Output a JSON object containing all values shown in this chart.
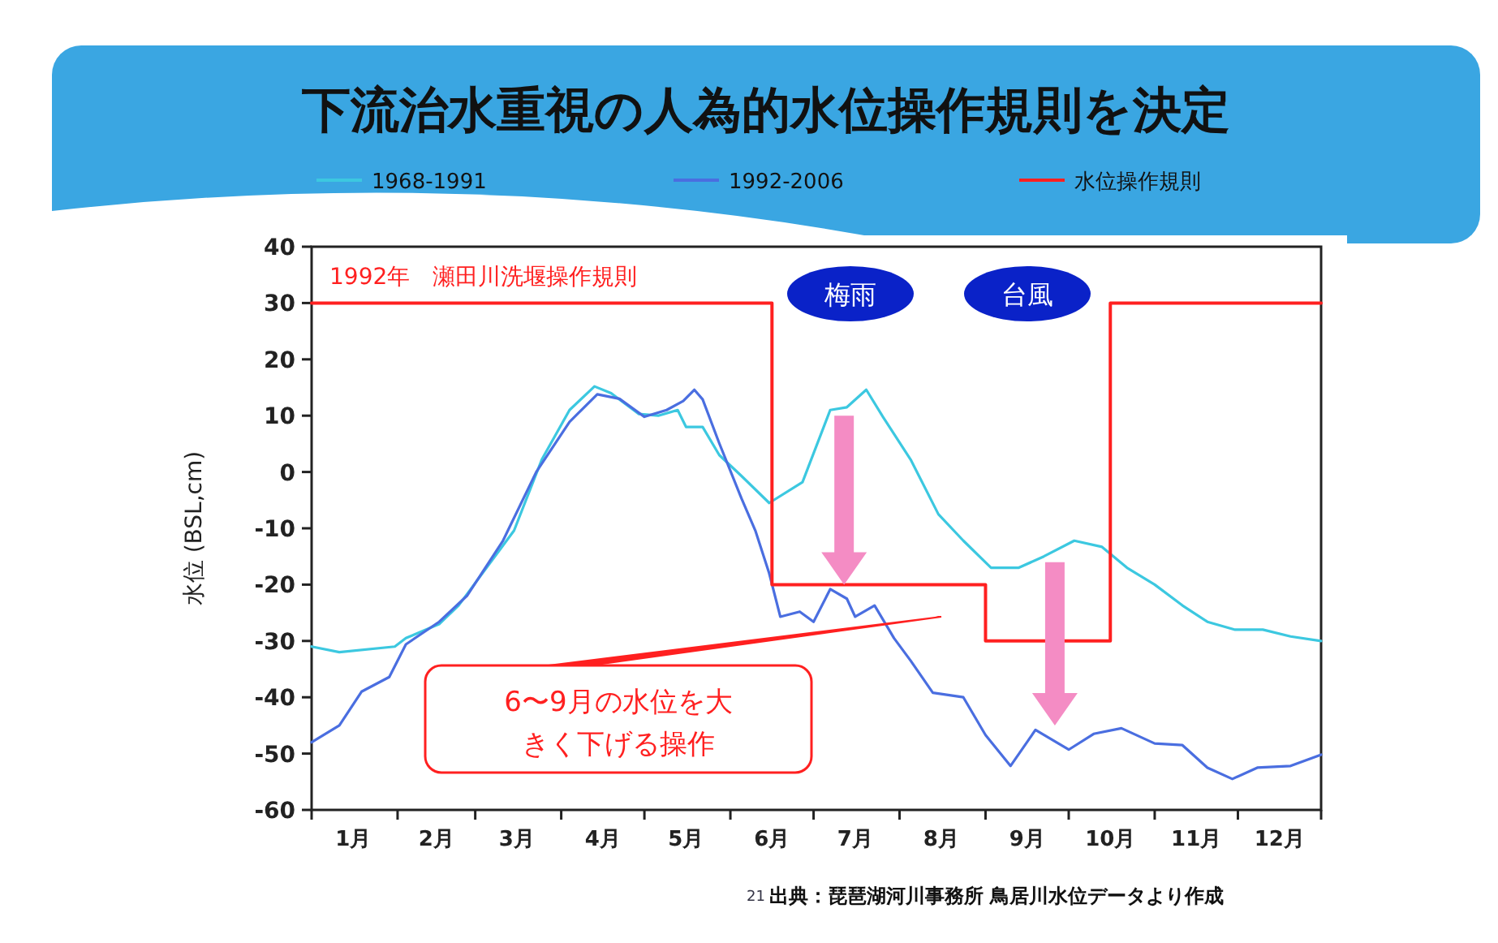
{
  "chart_data": {
    "type": "line",
    "title": "下流治水重視の人為的水位操作規則を決定",
    "ylabel": "水位 (BSL,cm)",
    "xlim": [
      "--01-01",
      "--12-31"
    ],
    "xticks": [
      {
        "value": "--01-01",
        "label": null
      },
      {
        "value": "--01-16",
        "label": "1月"
      },
      {
        "value": "--02-01",
        "label": null
      },
      {
        "value": "--02-15",
        "label": "2月"
      },
      {
        "value": "--03-01",
        "label": null
      },
      {
        "value": "--03-16",
        "label": "3月"
      },
      {
        "value": "--04-01",
        "label": null
      },
      {
        "value": "--04-16",
        "label": "4月"
      },
      {
        "value": "--05-01",
        "label": null
      },
      {
        "value": "--05-16",
        "label": "5月"
      },
      {
        "value": "--06-01",
        "label": null
      },
      {
        "value": "--06-16",
        "label": "6月"
      },
      {
        "value": "--07-01",
        "label": null
      },
      {
        "value": "--07-16",
        "label": "7月"
      },
      {
        "value": "--08-01",
        "label": null
      },
      {
        "value": "--08-16",
        "label": "8月"
      },
      {
        "value": "--09-01",
        "label": null
      },
      {
        "value": "--09-16",
        "label": "9月"
      },
      {
        "value": "--10-01",
        "label": null
      },
      {
        "value": "--10-16",
        "label": "10月"
      },
      {
        "value": "--11-01",
        "label": null
      },
      {
        "value": "--11-16",
        "label": "11月"
      },
      {
        "value": "--12-01",
        "label": null
      },
      {
        "value": "--12-16",
        "label": "12月"
      },
      {
        "value": "--12-31",
        "label": null
      }
    ],
    "ylim": [
      -60,
      40
    ],
    "yticks": [
      -60,
      -50,
      -40,
      -30,
      -20,
      -10,
      0,
      10,
      20,
      30,
      40
    ],
    "legend": "top",
    "grid": false,
    "marker": "none",
    "line_style": "solid",
    "series": [
      {
        "name": "1968-1991",
        "color": "#3cc8e0",
        "x": [
          "--01-01",
          "--01-11",
          "--01-31",
          "--02-04",
          "--02-16",
          "--02-23",
          "--03-15",
          "--03-25",
          "--04-04",
          "--04-13",
          "--04-19",
          "--04-29",
          "--05-06",
          "--05-13",
          "--05-16",
          "--05-22",
          "--05-28",
          "--06-05",
          "--06-15",
          "--06-27",
          "--07-07",
          "--07-13",
          "--07-20",
          "--07-26",
          "--08-05",
          "--08-15",
          "--08-24",
          "--09-03",
          "--09-13",
          "--09-22",
          "--10-03",
          "--10-13",
          "--10-22",
          "--11-01",
          "--11-11",
          "--11-20",
          "--11-30",
          "--12-10",
          "--12-20",
          "--12-31"
        ],
        "values": [
          -31,
          -32,
          -31,
          -29.5,
          -27,
          -23.7,
          -10.4,
          2.2,
          11,
          15.2,
          14,
          10.3,
          10,
          11,
          8,
          8,
          3,
          -0.7,
          -5.5,
          -1.8,
          11,
          11.5,
          14.6,
          9.8,
          2.2,
          -7.5,
          -12.2,
          -17,
          -17,
          -15,
          -12.2,
          -13.3,
          -17,
          -20,
          -23.7,
          -26.6,
          -28,
          -28,
          -29.2,
          -30
        ]
      },
      {
        "name": "1992-2006",
        "color": "#4a6ee0",
        "x": [
          "--01-01",
          "--01-11",
          "--01-19",
          "--01-29",
          "--02-04",
          "--02-16",
          "--02-26",
          "--03-11",
          "--03-23",
          "--04-04",
          "--04-14",
          "--04-22",
          "--05-01",
          "--05-09",
          "--05-15",
          "--05-19",
          "--05-22",
          "--05-28",
          "--06-05",
          "--06-10",
          "--06-15",
          "--06-19",
          "--06-26",
          "--07-01",
          "--07-07",
          "--07-13",
          "--07-16",
          "--07-23",
          "--07-30",
          "--08-05",
          "--08-13",
          "--08-24",
          "--09-01",
          "--09-10",
          "--09-19",
          "--10-01",
          "--10-10",
          "--10-20",
          "--11-01",
          "--11-11",
          "--11-20",
          "--11-29",
          "--12-08",
          "--12-20",
          "--12-31"
        ],
        "values": [
          -48,
          -45,
          -39,
          -36.4,
          -30.6,
          -26.6,
          -22,
          -12.2,
          0,
          8.9,
          13.8,
          13,
          9.8,
          11,
          12.6,
          14.6,
          12.9,
          5.1,
          -4.7,
          -10.4,
          -18,
          -25.7,
          -24.8,
          -26.6,
          -20.8,
          -22.5,
          -25.7,
          -23.7,
          -29.5,
          -33.5,
          -39.2,
          -40,
          -46.7,
          -52.2,
          -45.8,
          -49.3,
          -46.5,
          -45.5,
          -48.2,
          -48.5,
          -52.5,
          -54.5,
          -52.5,
          -52.2,
          -50.2
        ]
      },
      {
        "name": "水位操作規則",
        "type": "step",
        "color": "#ff2020",
        "x": [
          "--01-01",
          "--06-16",
          "--09-01",
          "--10-16",
          "--12-31"
        ],
        "values": [
          30,
          -20,
          -30,
          30,
          30
        ]
      }
    ],
    "annotations": [
      "1992年　瀬田川洗堰操作規則",
      "梅雨",
      "台風",
      "6〜9月の水位を大きく下げる操作",
      "21",
      "出典：琵琶湖河川事務所 鳥居川水位データより作成"
    ]
  }
}
